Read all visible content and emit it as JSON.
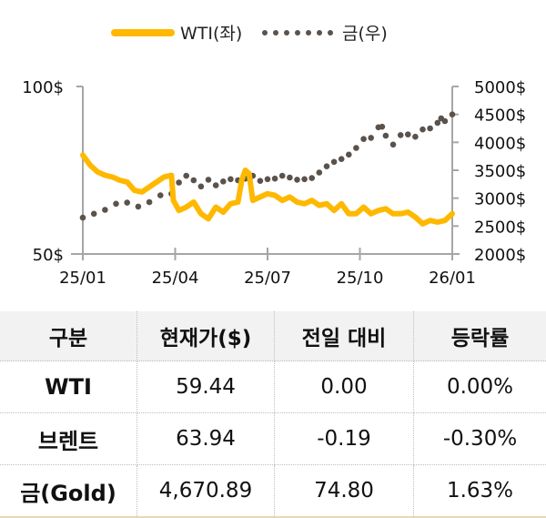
{
  "legend": {
    "wti_label": "WTI(좌)",
    "gold_label": "금(우)"
  },
  "colors": {
    "wti": "#FFB800",
    "gold": "#5B524C",
    "axis": "#A6A6A6",
    "table_header_bg": "#F2F2F2"
  },
  "chart_data": {
    "type": "line",
    "title": "",
    "x_ticks": [
      "25/01",
      "25/04",
      "25/07",
      "25/10",
      "26/01"
    ],
    "left_axis": {
      "label": "WTI",
      "ticks": [
        "100$",
        "50$"
      ],
      "range": [
        50,
        100
      ]
    },
    "right_axis": {
      "label": "금",
      "ticks": [
        "5000$",
        "4500$",
        "4000$",
        "3500$",
        "3000$",
        "2500$",
        "2000$"
      ],
      "range": [
        2000,
        5000
      ]
    },
    "legend_position": "top",
    "grid": false,
    "series": [
      {
        "name": "WTI(좌)",
        "axis": "left",
        "style": "solid-thick",
        "x": [
          0,
          0.02,
          0.04,
          0.06,
          0.08,
          0.1,
          0.12,
          0.14,
          0.16,
          0.18,
          0.2,
          0.22,
          0.24,
          0.245,
          0.26,
          0.28,
          0.3,
          0.32,
          0.34,
          0.36,
          0.38,
          0.4,
          0.42,
          0.43,
          0.44,
          0.45,
          0.46,
          0.48,
          0.5,
          0.52,
          0.54,
          0.56,
          0.58,
          0.6,
          0.62,
          0.64,
          0.66,
          0.68,
          0.7,
          0.72,
          0.74,
          0.76,
          0.78,
          0.8,
          0.82,
          0.84,
          0.86,
          0.88,
          0.9,
          0.92,
          0.94,
          0.96,
          0.98,
          1.0
        ],
        "values": [
          79.5,
          76.5,
          74.5,
          73.5,
          73,
          72,
          71.5,
          69,
          68.5,
          70,
          71.5,
          73,
          73.5,
          66,
          63,
          64,
          65.5,
          62,
          60.5,
          64,
          62.5,
          65,
          65.5,
          72,
          75,
          74,
          66,
          67,
          68,
          67.5,
          66,
          67,
          65.5,
          65,
          66,
          64.5,
          65,
          63,
          65,
          62,
          62,
          64,
          62,
          63,
          63.5,
          62,
          62,
          62.5,
          61,
          59,
          60,
          59.5,
          60,
          62
        ]
      },
      {
        "name": "금(우)",
        "axis": "right",
        "style": "dotted",
        "x": [
          0,
          0.03,
          0.06,
          0.09,
          0.12,
          0.15,
          0.18,
          0.21,
          0.24,
          0.26,
          0.28,
          0.3,
          0.32,
          0.34,
          0.36,
          0.38,
          0.4,
          0.42,
          0.44,
          0.46,
          0.48,
          0.5,
          0.52,
          0.54,
          0.56,
          0.58,
          0.6,
          0.62,
          0.64,
          0.66,
          0.68,
          0.7,
          0.72,
          0.74,
          0.76,
          0.78,
          0.8,
          0.81,
          0.82,
          0.84,
          0.86,
          0.88,
          0.9,
          0.92,
          0.94,
          0.96,
          0.97,
          0.98,
          1.0
        ],
        "values": [
          2650,
          2720,
          2790,
          2900,
          2920,
          2850,
          2930,
          3050,
          3080,
          3280,
          3400,
          3320,
          3210,
          3330,
          3230,
          3300,
          3340,
          3320,
          3350,
          3400,
          3310,
          3340,
          3350,
          3400,
          3370,
          3330,
          3340,
          3360,
          3460,
          3570,
          3650,
          3700,
          3780,
          3900,
          4060,
          4080,
          4270,
          4280,
          4120,
          3960,
          4130,
          4140,
          4100,
          4230,
          4250,
          4350,
          4430,
          4380,
          4500
        ]
      }
    ]
  },
  "table": {
    "headers": [
      "구분",
      "현재가($)",
      "전일 대비",
      "등락률"
    ],
    "rows": [
      {
        "name": "WTI",
        "price": "59.44",
        "change": "0.00",
        "rate": "0.00%"
      },
      {
        "name": "브렌트",
        "price": "63.94",
        "change": "-0.19",
        "rate": "-0.30%"
      },
      {
        "name": "금(Gold)",
        "price": "4,670.89",
        "change": "74.80",
        "rate": "1.63%"
      }
    ]
  }
}
